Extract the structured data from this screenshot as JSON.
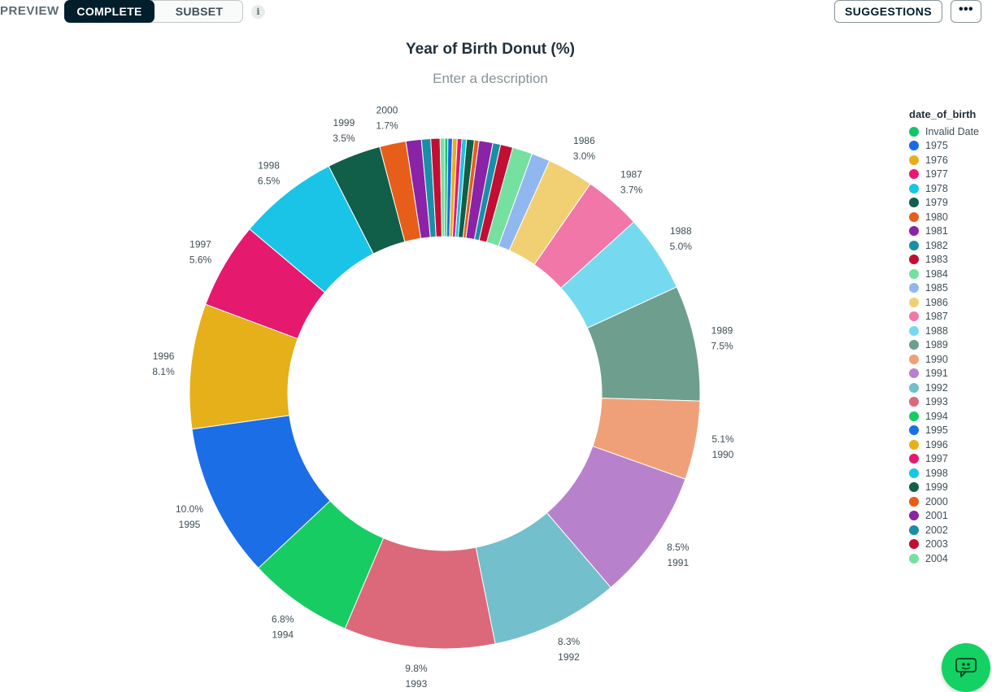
{
  "toolbar": {
    "preview_label": "PREVIEW",
    "mode_complete": "COMPLETE",
    "mode_subset": "SUBSET",
    "info_icon": "i",
    "suggestions_label": "SUGGESTIONS",
    "more_label": "•••"
  },
  "chart": {
    "title": "Year of Birth Donut (%)",
    "description_placeholder": "Enter a description"
  },
  "legend": {
    "title": "date_of_birth"
  },
  "chart_data": {
    "type": "pie",
    "donut": true,
    "title": "Year of Birth Donut (%)",
    "legend_title": "date_of_birth",
    "legend_position": "right",
    "unit": "%",
    "slices": [
      {
        "label": "Invalid Date",
        "value": 0.2,
        "color": "#13c56b"
      },
      {
        "label": "1975",
        "value": 0.3,
        "color": "#1a6ae6"
      },
      {
        "label": "1976",
        "value": 0.3,
        "color": "#e5b01a"
      },
      {
        "label": "1977",
        "value": 0.3,
        "color": "#e5196e"
      },
      {
        "label": "1978",
        "value": 0.3,
        "color": "#1ac4e6"
      },
      {
        "label": "1979",
        "value": 0.5,
        "color": "#115e49"
      },
      {
        "label": "1980",
        "value": 0.3,
        "color": "#e65e19"
      },
      {
        "label": "1981",
        "value": 0.9,
        "color": "#8a23a6"
      },
      {
        "label": "1982",
        "value": 0.5,
        "color": "#1a8ea6"
      },
      {
        "label": "1983",
        "value": 0.8,
        "color": "#c20e33"
      },
      {
        "label": "1984",
        "value": 1.3,
        "color": "#75e0a0"
      },
      {
        "label": "1985",
        "value": 1.2,
        "color": "#91b7f0"
      },
      {
        "label": "1986",
        "value": 3.0,
        "color": "#f0d073"
      },
      {
        "label": "1987",
        "value": 3.7,
        "color": "#f077a8"
      },
      {
        "label": "1988",
        "value": 5.0,
        "color": "#75daf0"
      },
      {
        "label": "1989",
        "value": 7.5,
        "color": "#6e9e8e"
      },
      {
        "label": "1990",
        "value": 5.1,
        "color": "#f0a078"
      },
      {
        "label": "1991",
        "value": 8.5,
        "color": "#b881cc"
      },
      {
        "label": "1992",
        "value": 8.3,
        "color": "#73bfcc"
      },
      {
        "label": "1993",
        "value": 9.8,
        "color": "#db6979"
      },
      {
        "label": "1994",
        "value": 6.8,
        "color": "#17cc62"
      },
      {
        "label": "1995",
        "value": 10.0,
        "color": "#1b6ee6"
      },
      {
        "label": "1996",
        "value": 8.1,
        "color": "#e5b01a"
      },
      {
        "label": "1997",
        "value": 5.6,
        "color": "#e5196e"
      },
      {
        "label": "1998",
        "value": 6.5,
        "color": "#1ac4e6"
      },
      {
        "label": "1999",
        "value": 3.5,
        "color": "#115e49"
      },
      {
        "label": "2000",
        "value": 1.7,
        "color": "#e65e19"
      },
      {
        "label": "2001",
        "value": 1.0,
        "color": "#8a23a6"
      },
      {
        "label": "2002",
        "value": 0.6,
        "color": "#1a8ea6"
      },
      {
        "label": "2003",
        "value": 0.6,
        "color": "#c20e33"
      },
      {
        "label": "2004",
        "value": 0.3,
        "color": "#75e0a0"
      }
    ],
    "slice_labels": [
      {
        "label": "1986",
        "value": "3.0%"
      },
      {
        "label": "1987",
        "value": "3.7%"
      },
      {
        "label": "1988",
        "value": "5.0%"
      },
      {
        "label": "1989",
        "value": "7.5%"
      },
      {
        "label": "1990",
        "value": "5.1%"
      },
      {
        "label": "1991",
        "value": "8.5%"
      },
      {
        "label": "1992",
        "value": "8.3%"
      },
      {
        "label": "1993",
        "value": "9.8%"
      },
      {
        "label": "1994",
        "value": "6.8%"
      },
      {
        "label": "1995",
        "value": "10.0%"
      },
      {
        "label": "1996",
        "value": "8.1%"
      },
      {
        "label": "1997",
        "value": "5.6%"
      },
      {
        "label": "1998",
        "value": "6.5%"
      },
      {
        "label": "1999",
        "value": "3.5%"
      },
      {
        "label": "2000",
        "value": "1.7%"
      }
    ]
  },
  "icons": {
    "info": "info-icon",
    "more": "more-icon",
    "chat": "chat-icon"
  }
}
